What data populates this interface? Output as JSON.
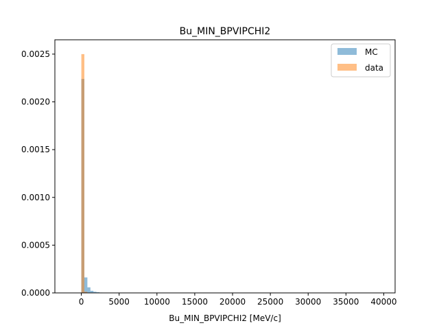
{
  "chart_data": {
    "type": "bar",
    "title": "Bu_MIN_BPVIPCHI2",
    "xlabel": "Bu_MIN_BPVIPCHI2 [MeV/c]",
    "ylabel": "",
    "xlim": [
      -3500,
      41500
    ],
    "ylim": [
      0,
      0.00265
    ],
    "xticks": [
      0,
      5000,
      10000,
      15000,
      20000,
      25000,
      30000,
      35000,
      40000
    ],
    "xtick_labels": [
      "0",
      "5000",
      "10000",
      "15000",
      "20000",
      "25000",
      "30000",
      "35000",
      "40000"
    ],
    "yticks": [
      0,
      0.0005,
      0.001,
      0.0015,
      0.002,
      0.0025
    ],
    "ytick_labels": [
      "0.0000",
      "0.0005",
      "0.0010",
      "0.0015",
      "0.0020",
      "0.0025"
    ],
    "grid": false,
    "legend_position": "top-right",
    "series": [
      {
        "name": "MC",
        "color": "#1f77b4",
        "opacity": 0.5,
        "bin_edges": [
          0,
          400,
          800,
          1200,
          1600,
          2000,
          2400,
          2800
        ],
        "values": [
          0.00224,
          0.000162,
          5.8e-05,
          2.2e-05,
          1.2e-05,
          7e-06,
          4e-06
        ]
      },
      {
        "name": "data",
        "color": "#ff7f0e",
        "opacity": 0.5,
        "bin_edges": [
          0,
          400,
          800
        ],
        "values": [
          0.0025,
          1.2e-05
        ]
      }
    ]
  }
}
